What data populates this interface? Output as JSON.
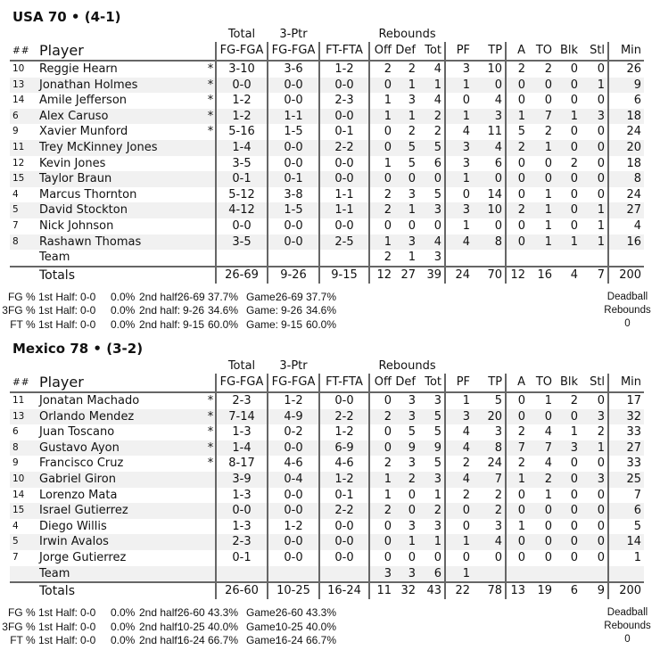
{
  "headers": {
    "total": "Total",
    "three_ptr": "3-Ptr",
    "rebounds": "Rebounds",
    "num": "##",
    "player": "Player",
    "fg": "FG-FGA",
    "tp3": "FG-FGA",
    "ft": "FT-FTA",
    "off": "Off",
    "def": "Def",
    "tot": "Tot",
    "pf": "PF",
    "tp": "TP",
    "a": "A",
    "to": "TO",
    "blk": "Blk",
    "stl": "Stl",
    "min": "Min"
  },
  "teams": [
    {
      "title": "USA 70 • (4-1)",
      "players": [
        [
          "10",
          "Reggie Hearn",
          "*",
          "3-10",
          "3-6",
          "1-2",
          "2",
          "2",
          "4",
          "3",
          "10",
          "2",
          "2",
          "0",
          "0",
          "26"
        ],
        [
          "13",
          "Jonathan Holmes",
          "*",
          "0-0",
          "0-0",
          "0-0",
          "0",
          "1",
          "1",
          "1",
          "0",
          "0",
          "0",
          "0",
          "1",
          "9"
        ],
        [
          "14",
          "Amile Jefferson",
          "*",
          "1-2",
          "0-0",
          "2-3",
          "1",
          "3",
          "4",
          "0",
          "4",
          "0",
          "0",
          "0",
          "0",
          "6"
        ],
        [
          "6",
          "Alex Caruso",
          "*",
          "1-2",
          "1-1",
          "0-0",
          "1",
          "1",
          "2",
          "1",
          "3",
          "1",
          "7",
          "1",
          "3",
          "18"
        ],
        [
          "9",
          "Xavier Munford",
          "*",
          "5-16",
          "1-5",
          "0-1",
          "0",
          "2",
          "2",
          "4",
          "11",
          "5",
          "2",
          "0",
          "0",
          "24"
        ],
        [
          "11",
          "Trey McKinney Jones",
          "",
          "1-4",
          "0-0",
          "2-2",
          "0",
          "5",
          "5",
          "3",
          "4",
          "2",
          "1",
          "0",
          "0",
          "20"
        ],
        [
          "12",
          "Kevin Jones",
          "",
          "3-5",
          "0-0",
          "0-0",
          "1",
          "5",
          "6",
          "3",
          "6",
          "0",
          "0",
          "2",
          "0",
          "18"
        ],
        [
          "15",
          "Taylor Braun",
          "",
          "0-1",
          "0-1",
          "0-0",
          "0",
          "0",
          "0",
          "1",
          "0",
          "0",
          "0",
          "0",
          "0",
          "8"
        ],
        [
          "4",
          "Marcus Thornton",
          "",
          "5-12",
          "3-8",
          "1-1",
          "2",
          "3",
          "5",
          "0",
          "14",
          "0",
          "1",
          "0",
          "0",
          "24"
        ],
        [
          "5",
          "David Stockton",
          "",
          "4-12",
          "1-5",
          "1-1",
          "2",
          "1",
          "3",
          "3",
          "10",
          "2",
          "1",
          "0",
          "1",
          "27"
        ],
        [
          "7",
          "Nick Johnson",
          "",
          "0-0",
          "0-0",
          "0-0",
          "0",
          "0",
          "0",
          "1",
          "0",
          "0",
          "1",
          "0",
          "1",
          "4"
        ],
        [
          "8",
          "Rashawn Thomas",
          "",
          "3-5",
          "0-0",
          "2-5",
          "1",
          "3",
          "4",
          "4",
          "8",
          "0",
          "1",
          "1",
          "1",
          "16"
        ],
        [
          "",
          "Team",
          "",
          "",
          "",
          "",
          "2",
          "1",
          "3",
          "",
          "",
          "",
          "",
          "",
          "",
          ""
        ]
      ],
      "totals": [
        "",
        "Totals",
        "",
        "26-69",
        "9-26",
        "9-15",
        "12",
        "27",
        "39",
        "24",
        "70",
        "12",
        "16",
        "4",
        "7",
        "200"
      ],
      "shooting": [
        [
          "FG % 1st Half:",
          "0-0",
          "0.0%",
          "2nd half:",
          "26-69",
          "37.7%",
          "Game:",
          "26-69",
          "37.7%"
        ],
        [
          "3FG % 1st Half:",
          "0-0",
          "0.0%",
          "2nd half:",
          "9-26",
          "34.6%",
          "Game:",
          "9-26",
          "34.6%"
        ],
        [
          "FT % 1st Half:",
          "0-0",
          "0.0%",
          "2nd half:",
          "9-15",
          "60.0%",
          "Game:",
          "9-15",
          "60.0%"
        ]
      ],
      "deadball": {
        "label1": "Deadball",
        "label2": "Rebounds",
        "value": "0"
      }
    },
    {
      "title": "Mexico 78 • (3-2)",
      "players": [
        [
          "11",
          "Jonatan Machado",
          "*",
          "2-3",
          "1-2",
          "0-0",
          "0",
          "3",
          "3",
          "1",
          "5",
          "0",
          "1",
          "2",
          "0",
          "17"
        ],
        [
          "13",
          "Orlando Mendez",
          "*",
          "7-14",
          "4-9",
          "2-2",
          "2",
          "3",
          "5",
          "3",
          "20",
          "0",
          "0",
          "0",
          "3",
          "32"
        ],
        [
          "6",
          "Juan Toscano",
          "*",
          "1-3",
          "0-2",
          "1-2",
          "0",
          "5",
          "5",
          "4",
          "3",
          "2",
          "4",
          "1",
          "2",
          "33"
        ],
        [
          "8",
          "Gustavo Ayon",
          "*",
          "1-4",
          "0-0",
          "6-9",
          "0",
          "9",
          "9",
          "4",
          "8",
          "7",
          "7",
          "3",
          "1",
          "27"
        ],
        [
          "9",
          "Francisco Cruz",
          "*",
          "8-17",
          "4-6",
          "4-6",
          "2",
          "3",
          "5",
          "2",
          "24",
          "2",
          "4",
          "0",
          "0",
          "33"
        ],
        [
          "10",
          "Gabriel Giron",
          "",
          "3-9",
          "0-4",
          "1-2",
          "1",
          "2",
          "3",
          "4",
          "7",
          "1",
          "2",
          "0",
          "3",
          "25"
        ],
        [
          "14",
          "Lorenzo Mata",
          "",
          "1-3",
          "0-0",
          "0-1",
          "1",
          "0",
          "1",
          "2",
          "2",
          "0",
          "1",
          "0",
          "0",
          "7"
        ],
        [
          "15",
          "Israel Gutierrez",
          "",
          "0-0",
          "0-0",
          "2-2",
          "2",
          "0",
          "2",
          "0",
          "2",
          "0",
          "0",
          "0",
          "0",
          "6"
        ],
        [
          "4",
          "Diego Willis",
          "",
          "1-3",
          "1-2",
          "0-0",
          "0",
          "3",
          "3",
          "0",
          "3",
          "1",
          "0",
          "0",
          "0",
          "5"
        ],
        [
          "5",
          "Irwin Avalos",
          "",
          "2-3",
          "0-0",
          "0-0",
          "0",
          "1",
          "1",
          "1",
          "4",
          "0",
          "0",
          "0",
          "0",
          "14"
        ],
        [
          "7",
          "Jorge Gutierrez",
          "",
          "0-1",
          "0-0",
          "0-0",
          "0",
          "0",
          "0",
          "0",
          "0",
          "0",
          "0",
          "0",
          "0",
          "1"
        ],
        [
          "",
          "Team",
          "",
          "",
          "",
          "",
          "3",
          "3",
          "6",
          "1",
          "",
          "",
          "",
          "",
          "",
          ""
        ]
      ],
      "totals": [
        "",
        "Totals",
        "",
        "26-60",
        "10-25",
        "16-24",
        "11",
        "32",
        "43",
        "22",
        "78",
        "13",
        "19",
        "6",
        "9",
        "200"
      ],
      "shooting": [
        [
          "FG % 1st Half:",
          "0-0",
          "0.0%",
          "2nd half:",
          "26-60",
          "43.3%",
          "Game:",
          "26-60",
          "43.3%"
        ],
        [
          "3FG % 1st Half:",
          "0-0",
          "0.0%",
          "2nd half:",
          "10-25",
          "40.0%",
          "Game:",
          "10-25",
          "40.0%"
        ],
        [
          "FT % 1st Half:",
          "0-0",
          "0.0%",
          "2nd half:",
          "16-24",
          "66.7%",
          "Game:",
          "16-24",
          "66.7%"
        ]
      ],
      "deadball": {
        "label1": "Deadball",
        "label2": "Rebounds",
        "value": "0"
      }
    }
  ]
}
